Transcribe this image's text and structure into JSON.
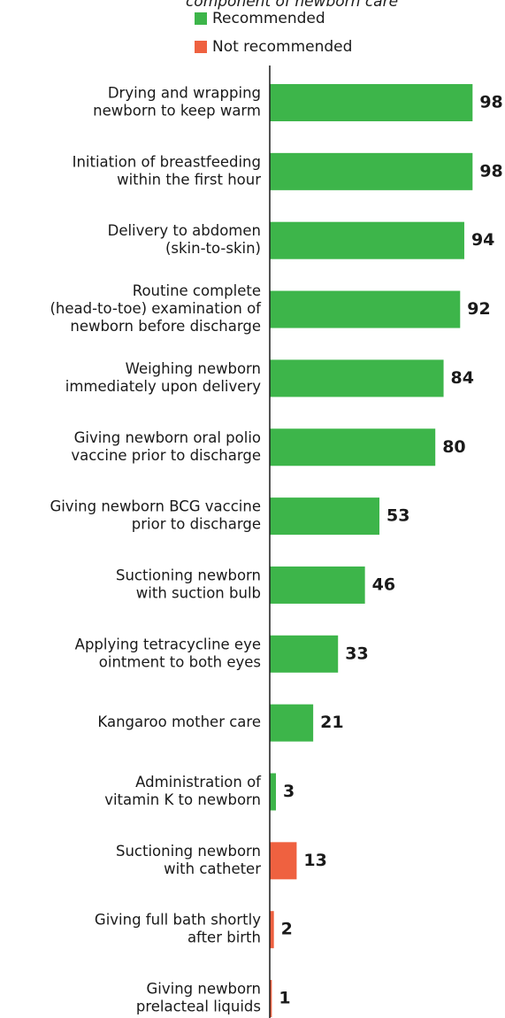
{
  "chart_data": {
    "type": "hbar",
    "subtitle": "component of newborn care",
    "categories": [
      [
        "Drying and wrapping",
        "newborn to keep warm"
      ],
      [
        "Initiation of breastfeeding",
        "within the first hour"
      ],
      [
        "Delivery to abdomen",
        "(skin-to-skin)"
      ],
      [
        "Routine complete",
        "(head-to-toe) examination of",
        "newborn before discharge"
      ],
      [
        "Weighing newborn",
        "immediately upon delivery"
      ],
      [
        "Giving newborn oral polio",
        "vaccine prior to discharge"
      ],
      [
        "Giving newborn BCG vaccine",
        "prior to discharge"
      ],
      [
        "Suctioning newborn",
        "with suction bulb"
      ],
      [
        "Applying tetracycline eye",
        "ointment to both eyes"
      ],
      [
        "Kangaroo mother care"
      ],
      [
        "Administration of",
        "vitamin K to newborn"
      ],
      [
        "Suctioning newborn",
        "with catheter"
      ],
      [
        "Giving full bath shortly",
        "after birth"
      ],
      [
        "Giving newborn",
        "prelacteal liquids"
      ]
    ],
    "series": [
      {
        "name": "Recommended",
        "color": "#3db54a",
        "values": [
          98,
          98,
          94,
          92,
          84,
          80,
          53,
          46,
          33,
          21,
          3,
          null,
          null,
          null
        ]
      },
      {
        "name": "Not recommended",
        "color": "#ef6140",
        "values": [
          null,
          null,
          null,
          null,
          null,
          null,
          null,
          null,
          null,
          null,
          null,
          13,
          2,
          1
        ]
      }
    ],
    "xlim": [
      0,
      100
    ]
  }
}
